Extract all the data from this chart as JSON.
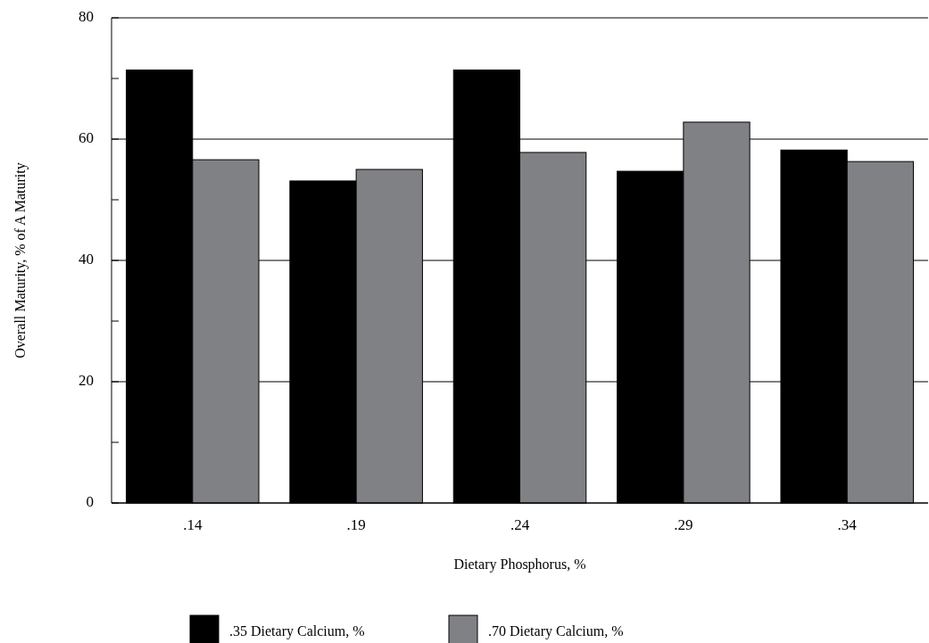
{
  "chart_data": {
    "type": "bar",
    "xlabel": "Dietary Phosphorus, %",
    "ylabel": "Overall Maturity, % of A Maturity",
    "categories": [
      ".14",
      ".19",
      ".24",
      ".29",
      ".34"
    ],
    "series": [
      {
        "name": ".35 Dietary Calcium, %",
        "color": "#000000",
        "values": [
          71.4,
          53.1,
          71.4,
          54.7,
          58.2
        ]
      },
      {
        "name": ".70 Dietary Calcium, %",
        "color": "#808184",
        "values": [
          56.6,
          55.0,
          57.8,
          62.8,
          56.3
        ]
      }
    ],
    "ylim": [
      0,
      80
    ],
    "yticks": [
      0,
      {
        "value": 10,
        "label": null
      },
      20,
      {
        "value": 30,
        "label": null
      },
      40,
      {
        "value": 50,
        "label": null
      },
      60,
      {
        "value": 70,
        "label": null
      },
      80
    ],
    "grid": "y",
    "legend": "bottom"
  }
}
